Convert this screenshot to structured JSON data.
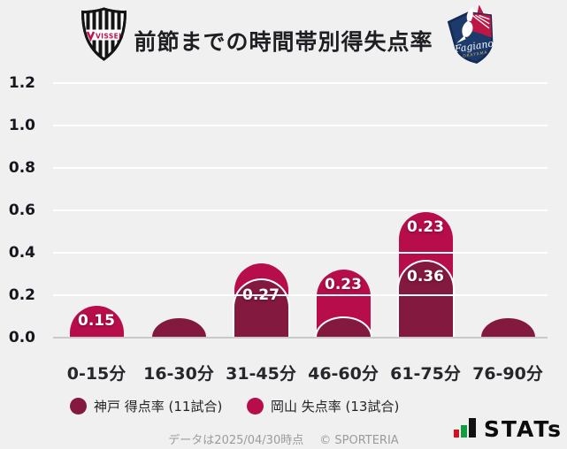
{
  "title": "前節までの時間帯別得失点率",
  "header": {
    "left_logo": "vissel-kobe-crest",
    "left_logo_text": "VISSEL",
    "right_logo": "fagiano-okayama-crest",
    "right_logo_text": "Fagiano",
    "right_logo_subtext": "OKAYAMA"
  },
  "chart_data": {
    "type": "bar",
    "stacked": true,
    "title": "前節までの時間帯別得失点率",
    "categories": [
      "0-15分",
      "16-30分",
      "31-45分",
      "46-60分",
      "61-75分",
      "76-90分"
    ],
    "series": [
      {
        "name": "神戸 得点率 (11試合)",
        "color": "#84193f",
        "values": [
          0,
          0.09,
          0.27,
          0.09,
          0.36,
          0.09
        ],
        "labels": [
          "",
          "",
          "0.27",
          "",
          "0.36",
          ""
        ]
      },
      {
        "name": "岡山 失点率 (13試合)",
        "color": "#b70e4b",
        "values": [
          0.15,
          0,
          0.08,
          0.23,
          0.23,
          0
        ],
        "labels": [
          "0.15",
          "",
          "",
          "0.23",
          "0.23",
          ""
        ]
      }
    ],
    "xlabel": "",
    "ylabel": "",
    "ylim": [
      0,
      1.2
    ],
    "yticks": [
      0,
      0.2,
      0.4,
      0.6,
      0.8,
      1.0,
      1.2
    ],
    "grid": true,
    "gridline_color": "#ffffff",
    "baseline_color": "#c9c9c9",
    "background_color": "#f0f0f0",
    "value_label_color": "#ffffff",
    "legend_position": "bottom"
  },
  "footer": {
    "source": "データは2025/04/30時点",
    "copyright": "© SPORTERIA",
    "brand": "STATs"
  }
}
